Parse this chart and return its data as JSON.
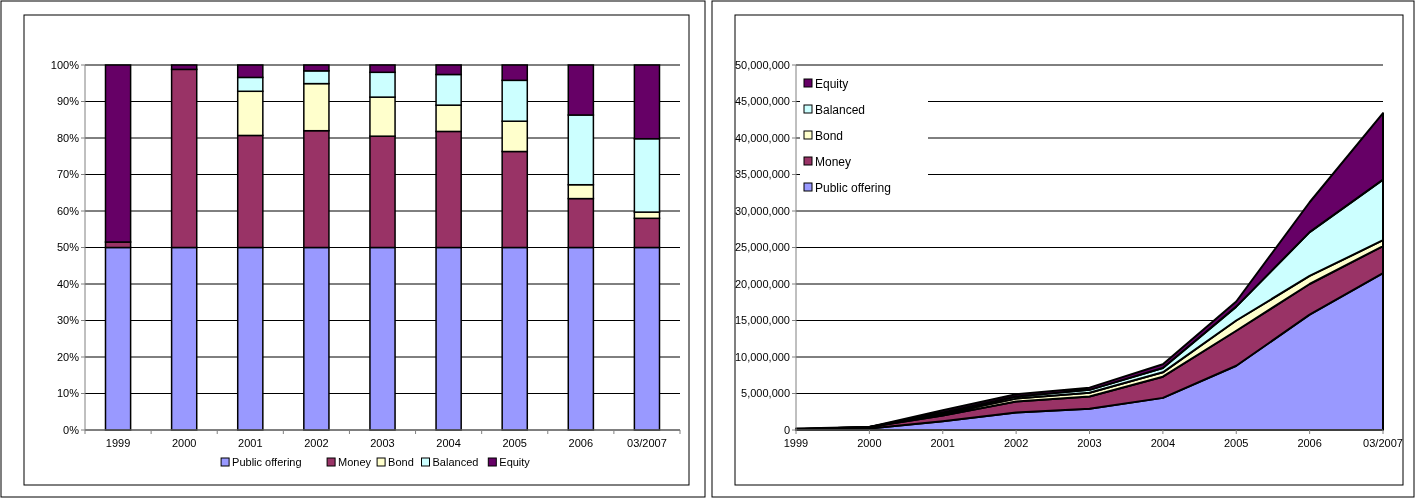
{
  "chart_data": [
    {
      "type": "bar",
      "stacked": true,
      "categories": [
        "1999",
        "2000",
        "2001",
        "2002",
        "2003",
        "2004",
        "2005",
        "2006",
        "03/2007"
      ],
      "series": [
        {
          "name": "Public offering",
          "color": "#9999ff",
          "values": [
            50,
            50,
            50,
            50,
            50,
            50,
            50,
            50,
            50
          ]
        },
        {
          "name": "Money",
          "color": "#993366",
          "values": [
            1.5,
            48.8,
            30.7,
            32,
            30.5,
            31.8,
            26.3,
            13.4,
            8
          ]
        },
        {
          "name": "Bond",
          "color": "#ffffcc",
          "values": [
            0,
            0,
            12.1,
            12.9,
            10.7,
            7.2,
            8.3,
            3.8,
            1.7
          ]
        },
        {
          "name": "Balanced",
          "color": "#ccffff",
          "values": [
            0,
            0,
            3.8,
            3.5,
            6.8,
            8.4,
            11.2,
            19.1,
            20.1
          ]
        },
        {
          "name": "Equity",
          "color": "#660066",
          "values": [
            48.5,
            1.2,
            3.4,
            1.6,
            2,
            2.6,
            4.2,
            13.7,
            20.2
          ]
        }
      ],
      "ylim": [
        0,
        100
      ],
      "yticks": [
        {
          "value": 0,
          "label": "0%"
        },
        {
          "value": 10,
          "label": "10%"
        },
        {
          "value": 20,
          "label": "20%"
        },
        {
          "value": 30,
          "label": "30%"
        },
        {
          "value": 40,
          "label": "40%"
        },
        {
          "value": 50,
          "label": "50%"
        },
        {
          "value": 60,
          "label": "60%"
        },
        {
          "value": 70,
          "label": "70%"
        },
        {
          "value": 80,
          "label": "80%"
        },
        {
          "value": 90,
          "label": "90%"
        },
        {
          "value": 100,
          "label": "100%"
        }
      ],
      "grid": "y",
      "legend": "bottom"
    },
    {
      "type": "area",
      "stacked": true,
      "categories": [
        "1999",
        "2000",
        "2001",
        "2002",
        "2003",
        "2004",
        "2005",
        "2006",
        "03/2007"
      ],
      "series": [
        {
          "name": "Public offering",
          "color": "#9999ff",
          "values": [
            100000,
            200000,
            1200000,
            2400000,
            2900000,
            4400000,
            8800000,
            15800000,
            21500000
          ]
        },
        {
          "name": "Money",
          "color": "#993366",
          "values": [
            0,
            200000,
            800000,
            1500000,
            1700000,
            2900000,
            4800000,
            4200000,
            3700000
          ]
        },
        {
          "name": "Bond",
          "color": "#ffffcc",
          "values": [
            0,
            0,
            200000,
            400000,
            500000,
            600000,
            1400000,
            1100000,
            800000
          ]
        },
        {
          "name": "Balanced",
          "color": "#ccffff",
          "values": [
            0,
            0,
            200000,
            300000,
            400000,
            600000,
            1900000,
            6000000,
            8300000
          ]
        },
        {
          "name": "Equity",
          "color": "#660066",
          "values": [
            100000,
            0,
            300000,
            300000,
            300000,
            500000,
            700000,
            4100000,
            9100000
          ]
        }
      ],
      "ylim": [
        0,
        50000000
      ],
      "yticks": [
        {
          "value": 0,
          "label": "0"
        },
        {
          "value": 5000000,
          "label": "5,000,000"
        },
        {
          "value": 10000000,
          "label": "10,000,000"
        },
        {
          "value": 15000000,
          "label": "15,000,000"
        },
        {
          "value": 20000000,
          "label": "20,000,000"
        },
        {
          "value": 25000000,
          "label": "25,000,000"
        },
        {
          "value": 30000000,
          "label": "30,000,000"
        },
        {
          "value": 35000000,
          "label": "35,000,000"
        },
        {
          "value": 40000000,
          "label": "40,000,000"
        },
        {
          "value": 45000000,
          "label": "45,000,000"
        },
        {
          "value": 50000000,
          "label": "50,000,000"
        }
      ],
      "grid": "y",
      "legend": "top left"
    }
  ]
}
